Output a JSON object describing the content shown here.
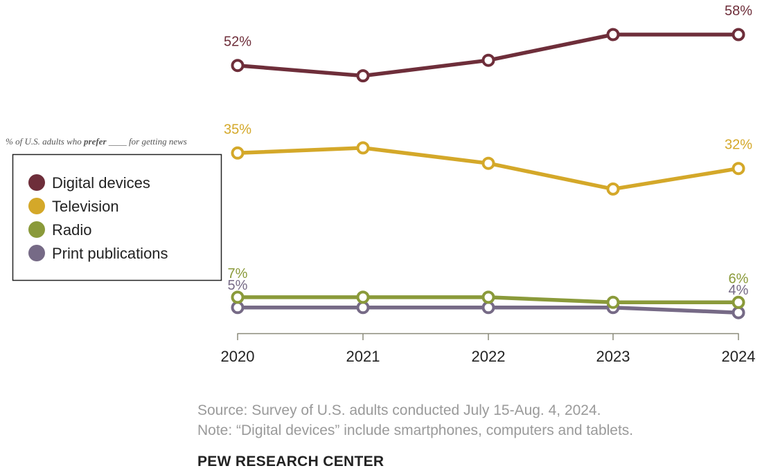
{
  "chart_data": {
    "type": "line",
    "subtitle_parts": [
      "% of U.S. adults who ",
      "prefer",
      " ____ for getting news"
    ],
    "categories": [
      "2020",
      "2021",
      "2022",
      "2023",
      "2024"
    ],
    "ylim": [
      0,
      60
    ],
    "grid": false,
    "legend_position": "left",
    "series": [
      {
        "name": "Digital devices",
        "color": "#6e2e3a",
        "values": [
          52,
          50,
          53,
          58,
          58
        ],
        "labels": [
          "52%",
          "",
          "",
          "",
          "58%"
        ]
      },
      {
        "name": "Television",
        "color": "#d4a829",
        "values": [
          35,
          36,
          33,
          28,
          32
        ],
        "labels": [
          "35%",
          "",
          "",
          "",
          "32%"
        ]
      },
      {
        "name": "Radio",
        "color": "#8a9a3a",
        "values": [
          7,
          7,
          7,
          6,
          6
        ],
        "labels": [
          "7%",
          "",
          "",
          "",
          "6%"
        ]
      },
      {
        "name": "Print publications",
        "color": "#766a86",
        "values": [
          5,
          5,
          5,
          5,
          4
        ],
        "labels": [
          "5%",
          "",
          "",
          "",
          "4%"
        ]
      }
    ]
  },
  "source": "Source: Survey of U.S. adults conducted July 15-Aug. 4, 2024.",
  "note": "Note: “Digital devices” include smartphones, computers and tablets.",
  "org": "PEW RESEARCH CENTER"
}
